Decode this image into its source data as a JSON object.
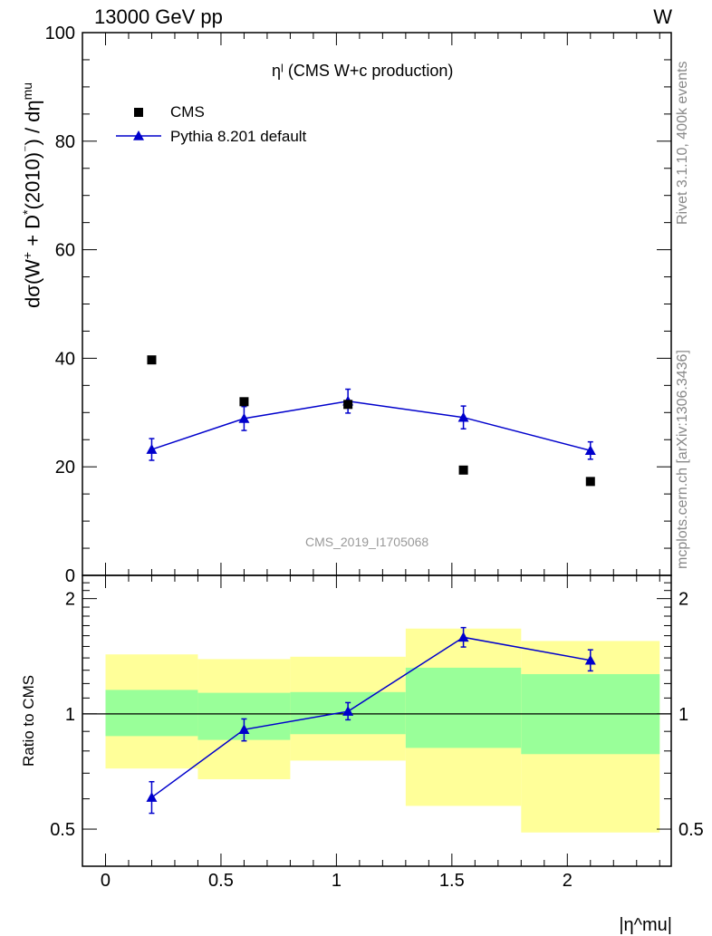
{
  "header": {
    "process": "13000 GeV pp",
    "label": "W"
  },
  "side_text": {
    "rivet": "Rivet 3.1.10,  400k events",
    "mcplots": "mcplots.cern.ch [arXiv:1306.3436]"
  },
  "chart_data": [
    {
      "type": "scatter",
      "title": "ηˡ (CMS W+c production)",
      "ylabel": "dσ(W⁺ + D*(2010)⁻) / dη^mu",
      "xlim": [
        -0.1,
        2.45
      ],
      "ylim": [
        0,
        100
      ],
      "yticks": [
        0,
        20,
        40,
        60,
        80,
        100
      ],
      "watermark": "CMS_2019_I1705068",
      "legend_position": "top-left",
      "series": [
        {
          "name": "CMS",
          "marker": "square",
          "color": "#000000",
          "x": [
            0.2,
            0.6,
            1.05,
            1.55,
            2.1
          ],
          "y": [
            39.7,
            32.0,
            31.5,
            19.4,
            17.3
          ]
        },
        {
          "name": "Pythia 8.201 default",
          "marker": "triangle",
          "color": "#0000cc",
          "x": [
            0.2,
            0.6,
            1.05,
            1.55,
            2.1
          ],
          "y": [
            23.2,
            28.9,
            32.1,
            29.1,
            23.0
          ],
          "err": [
            2.0,
            2.2,
            2.2,
            2.1,
            1.6
          ]
        }
      ]
    },
    {
      "type": "line",
      "ylabel": "Ratio to CMS",
      "xlabel": "|η^mu|",
      "xlim": [
        -0.1,
        2.45
      ],
      "ylim": [
        0.4,
        2.3
      ],
      "yticks": [
        0.5,
        1,
        2
      ],
      "xticks": [
        0,
        0.5,
        1,
        1.5,
        2
      ],
      "bins": [
        {
          "x0": 0.0,
          "x1": 0.4,
          "green": [
            0.875,
            1.155
          ],
          "yellow": [
            0.72,
            1.43
          ]
        },
        {
          "x0": 0.4,
          "x1": 0.8,
          "green": [
            0.855,
            1.135
          ],
          "yellow": [
            0.675,
            1.39
          ]
        },
        {
          "x0": 0.8,
          "x1": 1.3,
          "green": [
            0.885,
            1.14
          ],
          "yellow": [
            0.755,
            1.41
          ]
        },
        {
          "x0": 1.3,
          "x1": 1.8,
          "green": [
            0.815,
            1.32
          ],
          "yellow": [
            0.575,
            1.67
          ]
        },
        {
          "x0": 1.8,
          "x1": 2.4,
          "green": [
            0.785,
            1.27
          ],
          "yellow": [
            0.49,
            1.55
          ]
        }
      ],
      "series": [
        {
          "name": "Pythia 8.201 default",
          "color": "#0000cc",
          "x": [
            0.2,
            0.6,
            1.05,
            1.55,
            2.1
          ],
          "y": [
            0.605,
            0.91,
            1.015,
            1.585,
            1.38
          ],
          "err_low": [
            0.055,
            0.06,
            0.05,
            0.09,
            0.085
          ],
          "err_high": [
            0.06,
            0.06,
            0.055,
            0.095,
            0.09
          ]
        }
      ]
    }
  ]
}
